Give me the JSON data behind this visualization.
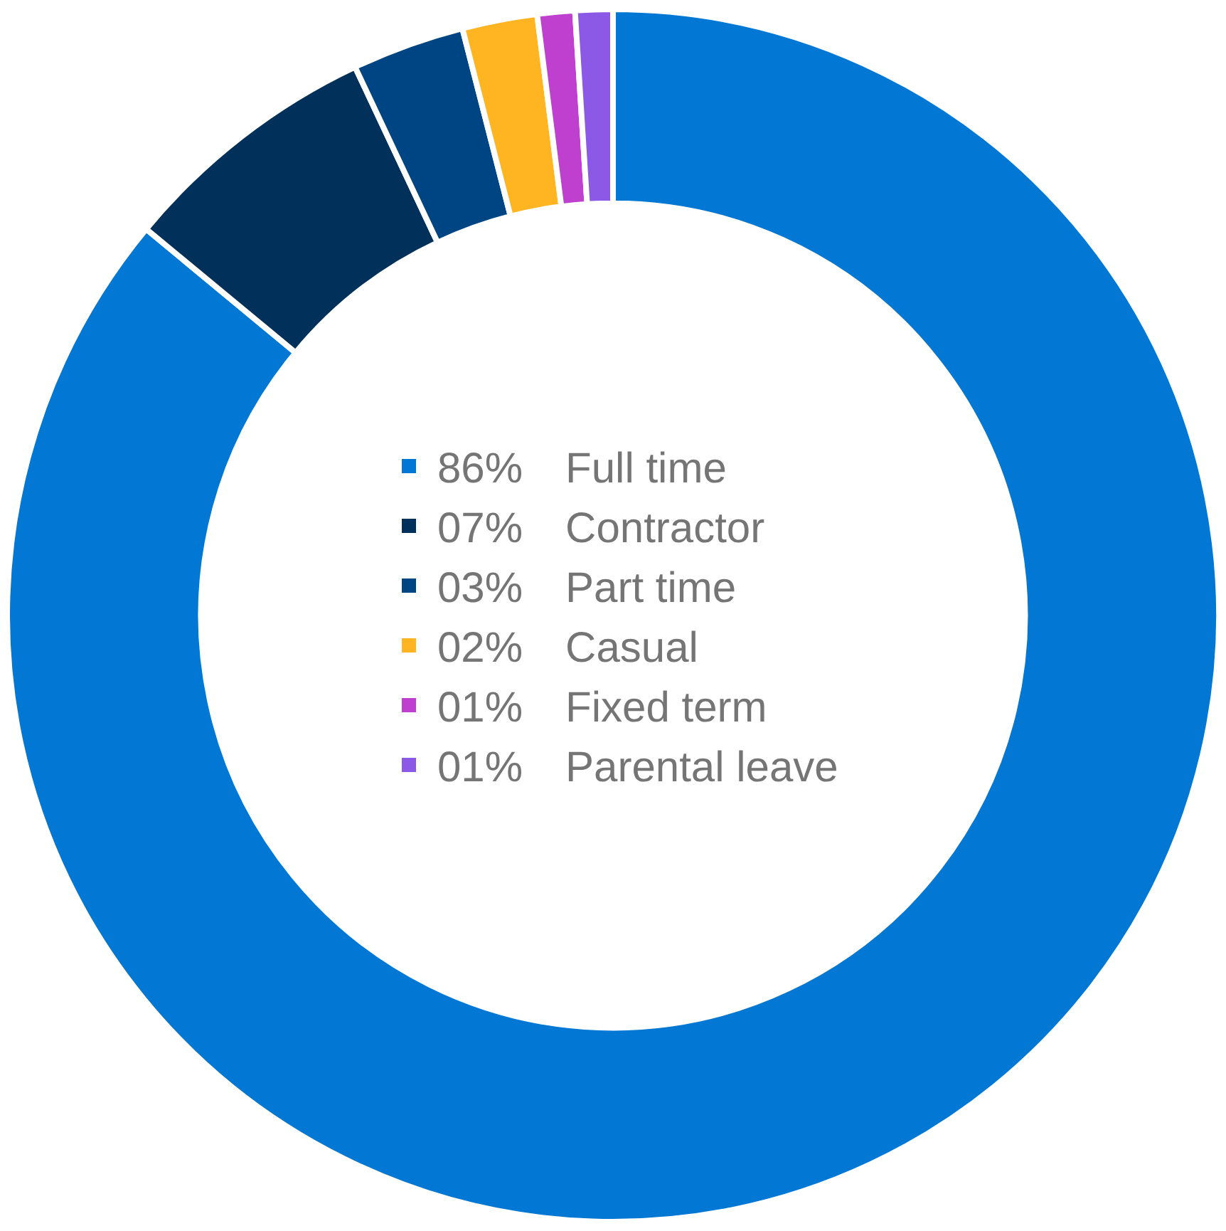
{
  "chart_data": {
    "type": "donut",
    "categories": [
      "Full time",
      "Contractor",
      "Part time",
      "Casual",
      "Fixed term",
      "Parental leave"
    ],
    "values": [
      86,
      7,
      3,
      2,
      1,
      1
    ],
    "value_labels": [
      "86%",
      "07%",
      "03%",
      "02%",
      "01%",
      "01%"
    ],
    "colors": [
      "#0277d4",
      "#01305a",
      "#004583",
      "#ffb521",
      "#bf3fcf",
      "#8b59e6"
    ],
    "legend": "center"
  }
}
